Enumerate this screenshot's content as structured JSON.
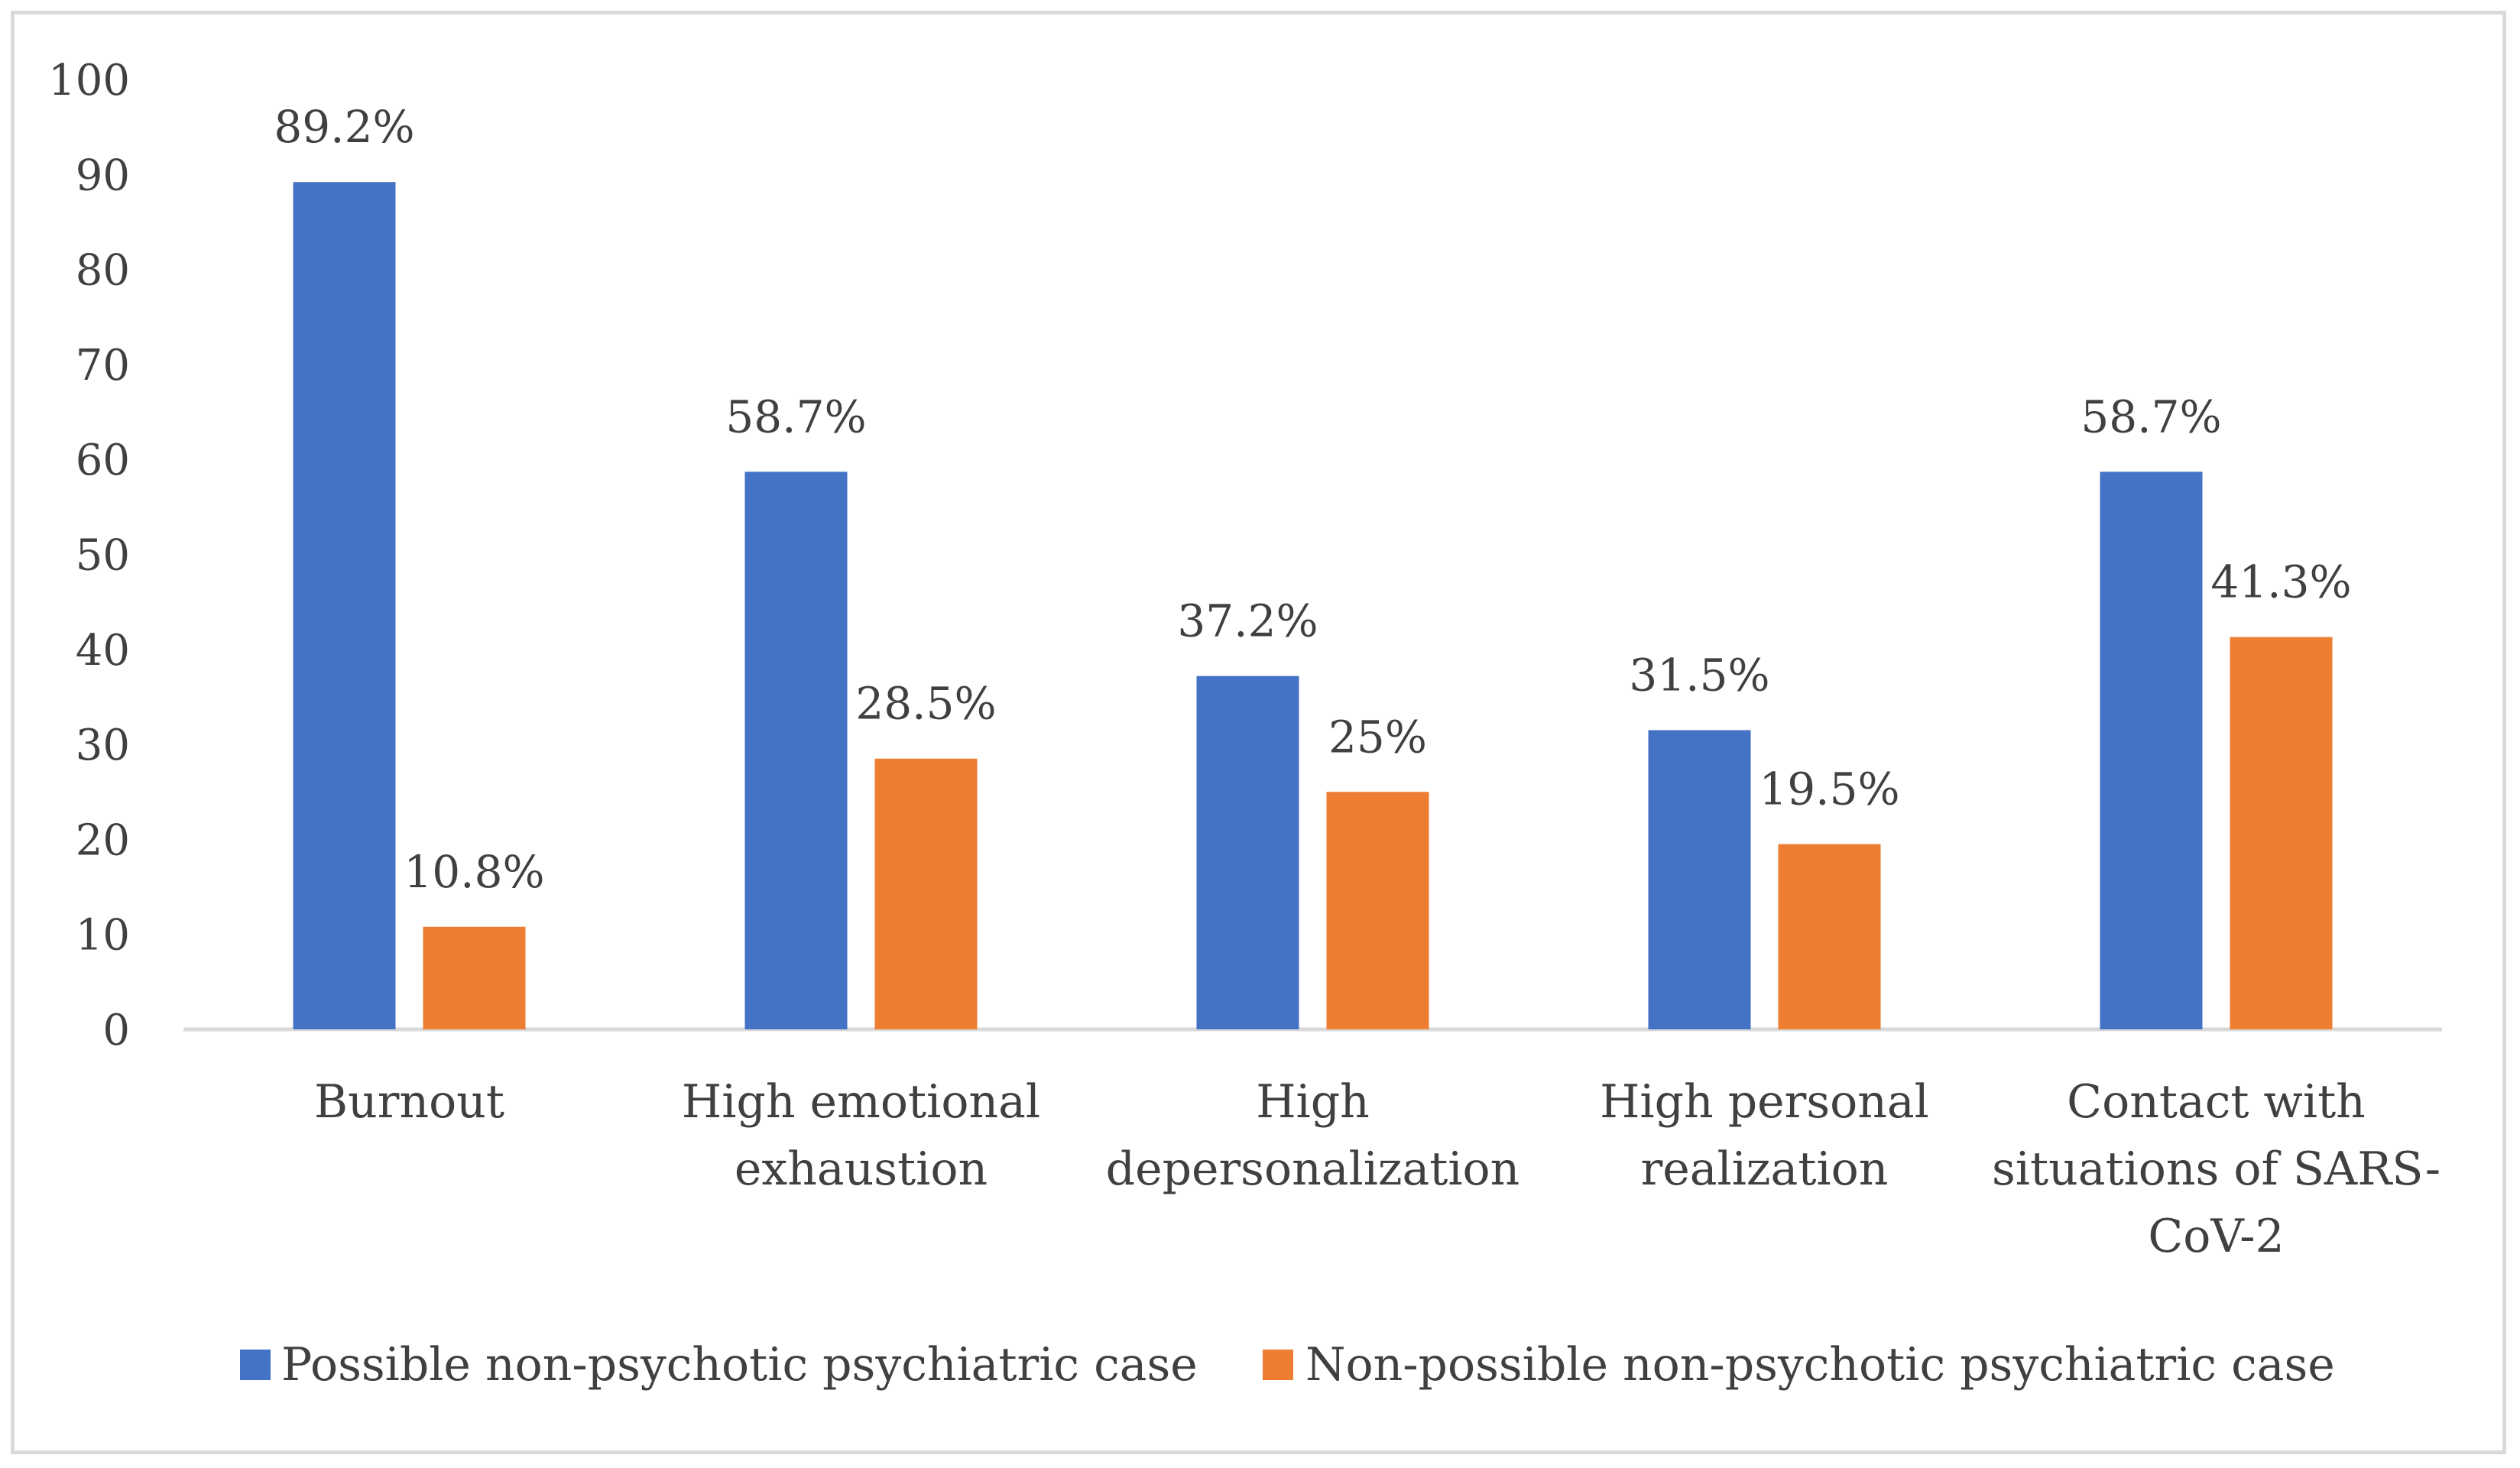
{
  "chart_data": {
    "type": "bar",
    "title": "",
    "xlabel": "",
    "ylabel": "",
    "ylim": [
      0,
      100
    ],
    "yticks": [
      "0",
      "10",
      "20",
      "30",
      "40",
      "50",
      "60",
      "70",
      "80",
      "90",
      "100"
    ],
    "categories": [
      [
        "Burnout"
      ],
      [
        "High emotional",
        "exhaustion"
      ],
      [
        "High",
        "depersonalization"
      ],
      [
        "High personal",
        "realization"
      ],
      [
        "Contact with",
        "situations of SARS-",
        "CoV-2"
      ]
    ],
    "series": [
      {
        "name": "Possible non-psychotic psychiatric case",
        "color": "#4472c4",
        "values": [
          89.2,
          58.7,
          37.2,
          31.5,
          58.7
        ],
        "labels": [
          "89.2%",
          "58.7%",
          "37.2%",
          "31.5%",
          "58.7%"
        ]
      },
      {
        "name": "Non-possible non-psychotic psychiatric case",
        "color": "#ed7d31",
        "values": [
          10.8,
          28.5,
          25,
          19.5,
          41.3
        ],
        "labels": [
          "10.8%",
          "28.5%",
          "25%",
          "19.5%",
          "41.3%"
        ]
      }
    ],
    "grid": false,
    "legend_position": "bottom"
  }
}
